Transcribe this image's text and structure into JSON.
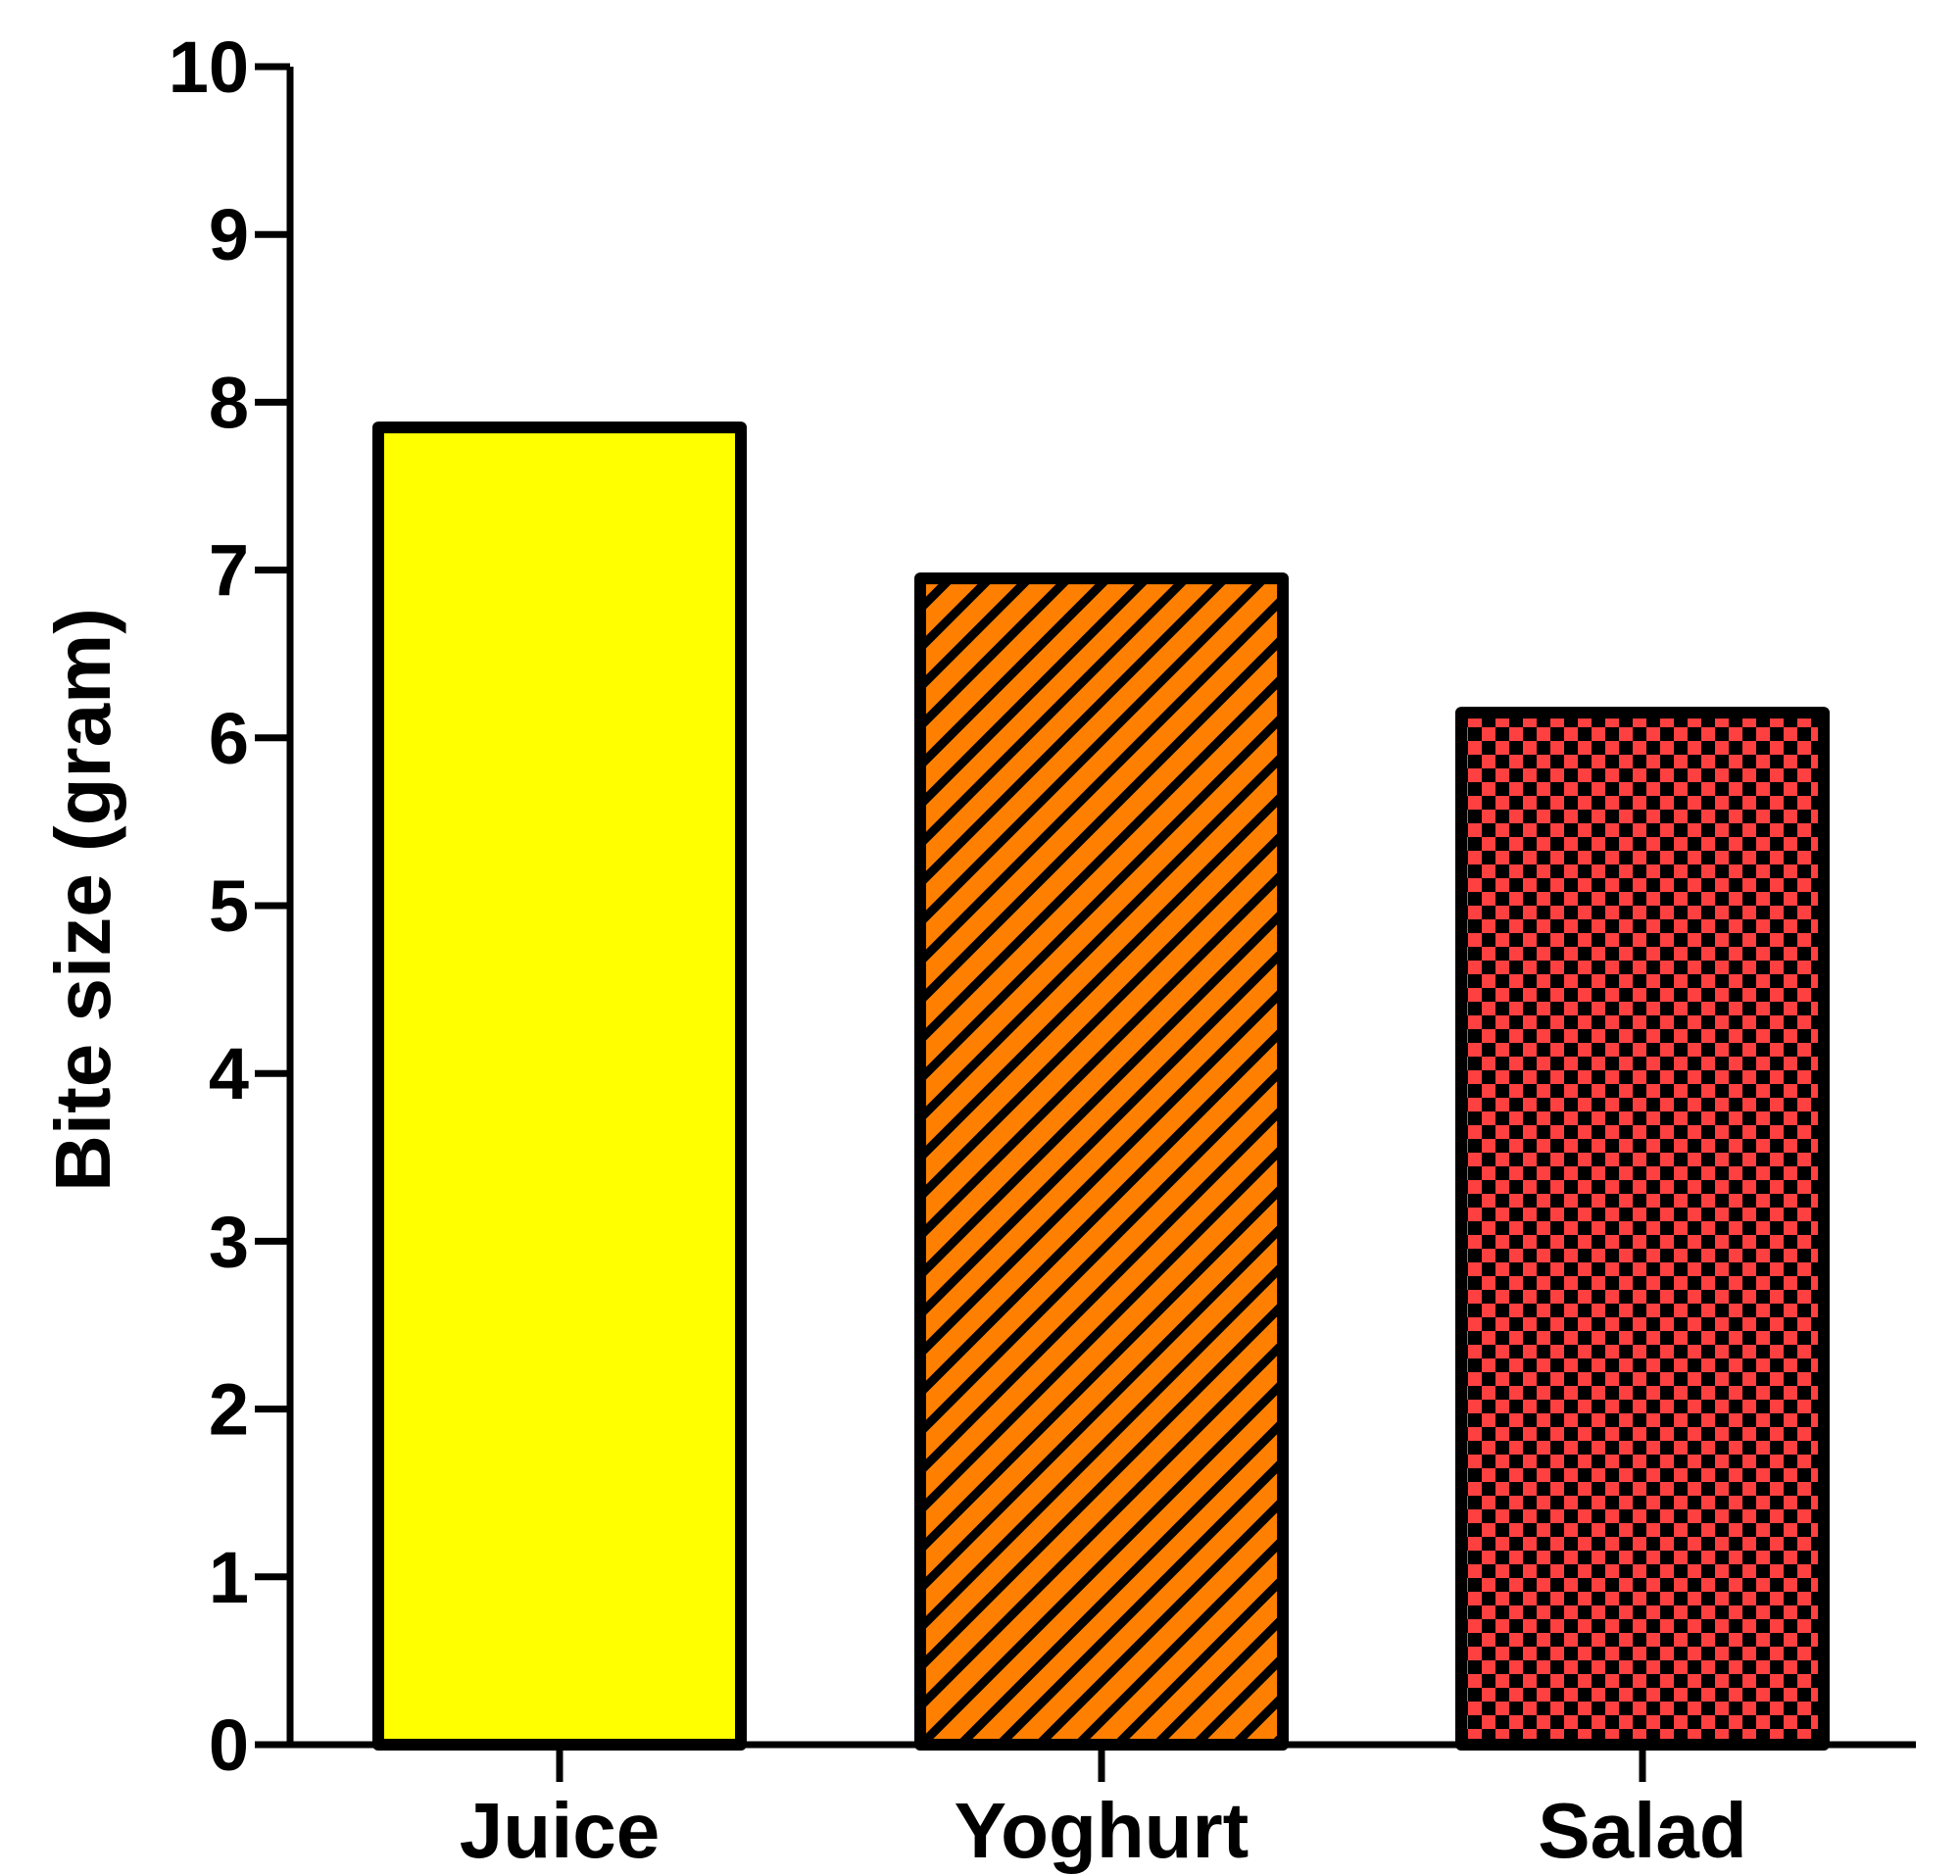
{
  "chart_data": {
    "type": "bar",
    "categories": [
      "Juice",
      "Yoghurt",
      "Salad"
    ],
    "values": [
      7.85,
      6.95,
      6.15
    ],
    "title": "",
    "xlabel": "",
    "ylabel": "Bite size (gram)",
    "ylim": [
      0,
      10
    ],
    "yticks": [
      "0",
      "1",
      "2",
      "3",
      "4",
      "5",
      "6",
      "7",
      "8",
      "9",
      "10"
    ],
    "grid": false,
    "legend": "none",
    "bar_styles": [
      {
        "fill": "#ffff00",
        "pattern": "solid"
      },
      {
        "fill": "#ff8000",
        "pattern": "diagonal-hatch"
      },
      {
        "fill": "#ff4040",
        "pattern": "checkerboard"
      }
    ],
    "outline_color": "#000000"
  }
}
